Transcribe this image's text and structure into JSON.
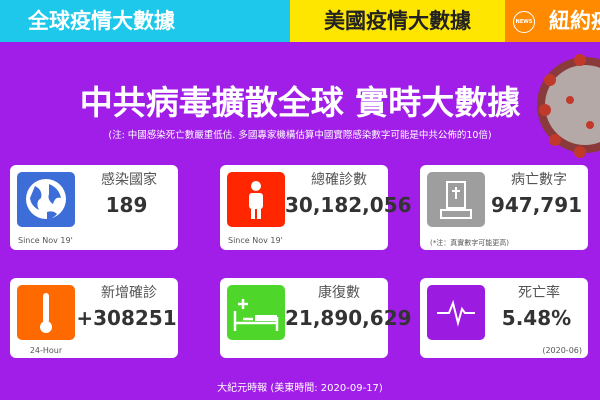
{
  "tabs": [
    "全球疫情大數據",
    "美國疫情大數據",
    "紐約疫"
  ],
  "tab_badge": "NEWS",
  "title": "中共病毒擴散全球 實時大數據",
  "note": "(注: 中國感染死亡數嚴重低估. 多國專家機構估算中國實際感染數字可能是中共公佈的10倍)",
  "cards": [
    {
      "label": "感染國家",
      "value": "189",
      "sub": "Since Nov 19'"
    },
    {
      "label": "總確診數",
      "value": "30,182,056",
      "sub": "Since Nov 19'"
    },
    {
      "label": "病亡數字",
      "value": "947,791",
      "sub": "(*注：真實數字可能更高)"
    },
    {
      "label": "新增確診",
      "value": "+308251",
      "sub": "24-Hour"
    },
    {
      "label": "康復數",
      "value": "21,890,629"
    },
    {
      "label": "死亡率",
      "value": "5.48%",
      "sub": "(2020-06)"
    }
  ],
  "footer": "大紀元時報 (美東時間: 2020-09-17)"
}
